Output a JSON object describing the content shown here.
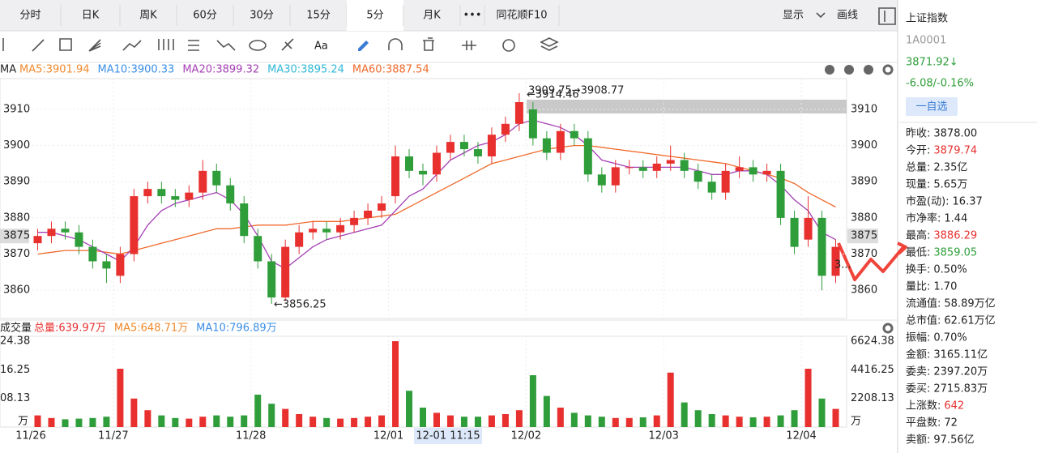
{
  "tabs": [
    "分时",
    "日K",
    "周K",
    "60分",
    "30分",
    "15分",
    "5分",
    "月K",
    "•••",
    "同花顺F10"
  ],
  "selected_tab": 6,
  "top_right": [
    "显示",
    "画线"
  ],
  "toolbar_text": "Aa",
  "ma_legend": {
    "label": "MA",
    "items": [
      {
        "text": "MA5:3901.94",
        "color": "#f0892b"
      },
      {
        "text": "MA10:3900.33",
        "color": "#3a8ee6"
      },
      {
        "text": "MA20:3899.32",
        "color": "#a53fb5"
      },
      {
        "text": "MA30:3895.24",
        "color": "#2fb8d6"
      },
      {
        "text": "MA60:3887.54",
        "color": "#f06a2b"
      }
    ]
  },
  "chart_data": [
    {
      "type": "candlestick",
      "categories": [
        "11/26",
        null,
        null,
        null,
        null,
        null,
        "11/27",
        null,
        null,
        null,
        null,
        null,
        null,
        null,
        null,
        null,
        "11/28",
        null,
        null,
        null,
        null,
        null,
        null,
        null,
        null,
        null,
        "12/01",
        null,
        null,
        null,
        null,
        null,
        null,
        null,
        null,
        null,
        "12/02",
        null,
        null,
        null,
        null,
        null,
        null,
        null,
        null,
        null,
        "12/03",
        null,
        null,
        null,
        null,
        null,
        null,
        null,
        null,
        null,
        "12/04",
        null,
        null
      ],
      "open": [
        3873,
        3875,
        3877,
        3876,
        3872,
        3868,
        3864,
        3870,
        3886,
        3888,
        3886,
        3885,
        3887,
        3893,
        3889,
        3884,
        3875,
        3868,
        3858,
        3872,
        3876,
        3877,
        3876,
        3878,
        3880,
        3882,
        3886,
        3897,
        3893,
        3892,
        3898,
        3901,
        3899,
        3897,
        3903,
        3906,
        3910,
        3902,
        3898,
        3904,
        3902,
        3892,
        3889,
        3894,
        3894,
        3893,
        3895,
        3896,
        3893,
        3890,
        3887,
        3893,
        3894,
        3892,
        3893,
        3880,
        3874,
        3880,
        3864
      ],
      "close": [
        3875,
        3877,
        3876,
        3872,
        3868,
        3866,
        3870,
        3886,
        3888,
        3886,
        3885,
        3887,
        3893,
        3889,
        3884,
        3875,
        3868,
        3858,
        3872,
        3876,
        3877,
        3876,
        3878,
        3880,
        3882,
        3884,
        3897,
        3893,
        3892,
        3898,
        3901,
        3899,
        3897,
        3903,
        3906,
        3912,
        3902,
        3898,
        3904,
        3902,
        3892,
        3889,
        3894,
        3894,
        3893,
        3895,
        3896,
        3893,
        3890,
        3887,
        3893,
        3894,
        3892,
        3893,
        3880,
        3872,
        3880,
        3864,
        3872
      ],
      "high": [
        3877,
        3879,
        3879,
        3878,
        3874,
        3870,
        3872,
        3888,
        3890,
        3890,
        3888,
        3889,
        3896,
        3895,
        3891,
        3886,
        3877,
        3870,
        3874,
        3878,
        3879,
        3879,
        3880,
        3882,
        3884,
        3886,
        3900,
        3899,
        3895,
        3900,
        3903,
        3903,
        3901,
        3905,
        3908,
        3914.46,
        3912,
        3904,
        3906,
        3906,
        3904,
        3894,
        3896,
        3896,
        3896,
        3897,
        3900,
        3898,
        3895,
        3892,
        3895,
        3897,
        3896,
        3895,
        3895,
        3882,
        3886,
        3882,
        3874
      ],
      "low": [
        3871,
        3873,
        3874,
        3870,
        3866,
        3862,
        3862,
        3868,
        3884,
        3884,
        3883,
        3883,
        3885,
        3887,
        3882,
        3873,
        3866,
        3856.25,
        3857,
        3870,
        3874,
        3874,
        3874,
        3876,
        3878,
        3880,
        3884,
        3891,
        3889,
        3890,
        3896,
        3897,
        3895,
        3895,
        3901,
        3904,
        3900,
        3896,
        3896,
        3900,
        3890,
        3887,
        3887,
        3892,
        3891,
        3891,
        3893,
        3891,
        3888,
        3885,
        3885,
        3891,
        3890,
        3890,
        3878,
        3870,
        3872,
        3860,
        3862
      ],
      "up_color": "#e8302f",
      "down_color": "#2f9e3a",
      "series": [
        {
          "color": "#f06a2b",
          "values": [
            3870,
            3870.5,
            3871,
            3871,
            3871,
            3870.5,
            3870,
            3871,
            3872,
            3873,
            3874,
            3875,
            3876,
            3877,
            3877,
            3877.5,
            3878,
            3878,
            3878,
            3878.5,
            3879,
            3879,
            3879,
            3879.5,
            3880,
            3880.5,
            3881,
            3883,
            3885,
            3887,
            3889,
            3891,
            3893,
            3895,
            3896,
            3897,
            3898,
            3899,
            3899.5,
            3900,
            3900,
            3899.5,
            3899,
            3898.5,
            3898,
            3897.5,
            3897,
            3896.5,
            3896,
            3895.5,
            3895,
            3894,
            3893,
            3892,
            3891,
            3889.5,
            3887,
            3885,
            3883
          ]
        },
        {
          "color": "#a53fb5",
          "values": [
            3876,
            3876,
            3875,
            3874,
            3872,
            3870,
            3868,
            3872,
            3878,
            3882,
            3884,
            3885,
            3886,
            3887,
            3885,
            3881,
            3875,
            3868,
            3866,
            3869,
            3872,
            3874,
            3875,
            3876,
            3877,
            3878,
            3882,
            3886,
            3888,
            3892,
            3896,
            3898,
            3900,
            3901,
            3903,
            3906,
            3907,
            3906,
            3905,
            3903,
            3900,
            3896,
            3895,
            3894,
            3894,
            3894,
            3894,
            3894,
            3893,
            3892,
            3892,
            3893,
            3893,
            3892,
            3889,
            3885,
            3882,
            3876,
            3874
          ]
        }
      ],
      "ylim": [
        3852.2,
        3918.5
      ],
      "yticks": [
        3860,
        3870,
        3880,
        3890,
        3900,
        3910
      ],
      "grid": true,
      "cursor_price": 3875,
      "cursor_label": "12-01 11:15",
      "annotations": [
        "3909.75→3908.77",
        "←3914.46",
        "←3856.25",
        "3..."
      ]
    },
    {
      "type": "bar",
      "title": "成交量",
      "legend": [
        {
          "text": "总量:639.97万",
          "color": "#e8302f"
        },
        {
          "text": "MA5:648.71万",
          "color": "#f0892b"
        },
        {
          "text": "MA10:796.89万",
          "color": "#3a8ee6"
        }
      ],
      "values": [
        900,
        700,
        600,
        650,
        700,
        800,
        4500,
        2200,
        1300,
        900,
        700,
        650,
        800,
        900,
        800,
        900,
        2500,
        1800,
        1400,
        1000,
        800,
        700,
        650,
        700,
        800,
        900,
        6624.38,
        2800,
        1500,
        1100,
        900,
        800,
        800,
        900,
        1000,
        1300,
        4000,
        2400,
        1500,
        1100,
        900,
        800,
        700,
        700,
        750,
        900,
        4200,
        1900,
        1300,
        1000,
        900,
        800,
        750,
        800,
        900,
        1300,
        4500,
        2200,
        1400
      ],
      "ylim": [
        0,
        7000
      ],
      "yticks": [
        2208.13,
        4416.25,
        6624.38
      ],
      "left_yticks": [
        {
          "value": 2208.13,
          "label": "08.13"
        },
        {
          "value": 4416.25,
          "label": "16.25"
        },
        {
          "value": 6624.38,
          "label": "24.38"
        }
      ],
      "unit": "万"
    }
  ],
  "right_panel": {
    "name": "上证指数",
    "code": "1A0001",
    "price": "3871.92↓",
    "change": "-6.08/-0.16%",
    "button": "一自选",
    "rows": [
      {
        "label": "昨收:",
        "value": "3878.00",
        "color": "#222"
      },
      {
        "label": "今开:",
        "value": "3879.74",
        "color": "#e8302f"
      },
      {
        "label": "总量:",
        "value": "2.35亿",
        "color": "#222"
      },
      {
        "label": "现量:",
        "value": "5.65万",
        "color": "#222"
      },
      {
        "label": "市盈(动):",
        "value": "16.37",
        "color": "#222"
      },
      {
        "label": "市净率:",
        "value": "1.44",
        "color": "#222"
      },
      {
        "label": "最高:",
        "value": "3886.29",
        "color": "#e8302f"
      },
      {
        "label": "最低:",
        "value": "3859.05",
        "color": "#2f9e3a"
      },
      {
        "label": "换手:",
        "value": "0.50%",
        "color": "#222"
      },
      {
        "label": "量比:",
        "value": "1.70",
        "color": "#222"
      },
      {
        "label": "流通值:",
        "value": "58.89万亿",
        "color": "#222"
      },
      {
        "label": "总市值:",
        "value": "62.61万亿",
        "color": "#222"
      },
      {
        "label": "振幅:",
        "value": "0.70%",
        "color": "#222"
      },
      {
        "label": "金额:",
        "value": "3165.11亿",
        "color": "#222"
      },
      {
        "label": "委卖:",
        "value": "2397.20万",
        "color": "#222"
      },
      {
        "label": "委买:",
        "value": "2715.83万",
        "color": "#222"
      },
      {
        "label": "上涨数:",
        "value": "642",
        "color": "#e8302f"
      },
      {
        "label": "平盘数:",
        "value": "72",
        "color": "#222"
      },
      {
        "label": "卖额:",
        "value": "97.56亿",
        "color": "#222"
      }
    ]
  }
}
